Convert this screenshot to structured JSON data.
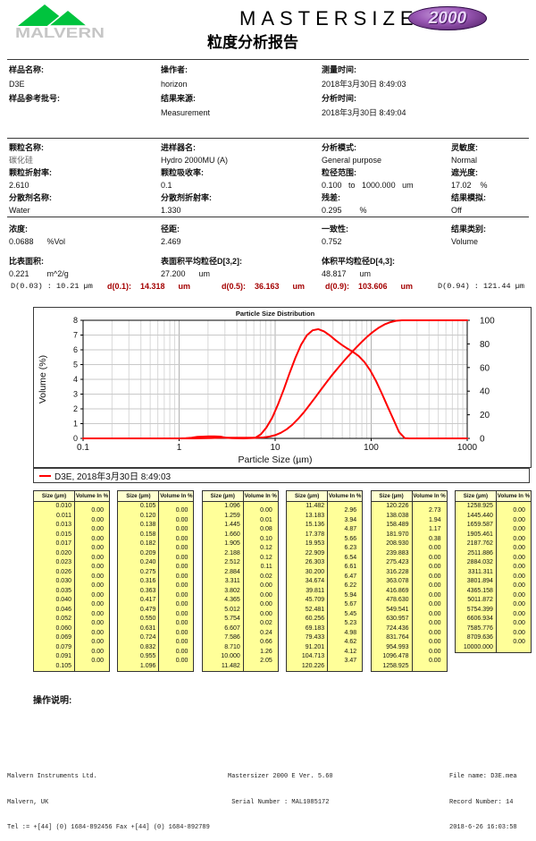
{
  "header": {
    "logo_text": "MALVERN",
    "title": "MASTERSIZER",
    "badge": "2000",
    "subtitle": "粒度分析报告"
  },
  "sample_section": {
    "columns": [
      {
        "fields": [
          {
            "label": "样品名称:",
            "value": "D3E"
          },
          {
            "label": "样品参考批号:",
            "value": ""
          }
        ]
      },
      {
        "fields": [
          {
            "label": "操作者:",
            "value": "horizon"
          },
          {
            "label": "结果来源:",
            "value": "Measurement"
          }
        ]
      },
      {
        "fields": [
          {
            "label": "测量时间:",
            "value": "2018年3月30日 8:49:03"
          },
          {
            "label": "分析时间:",
            "value": "2018年3月30日 8:49:04"
          }
        ]
      }
    ]
  },
  "particle_section": {
    "columns": [
      {
        "fields": [
          {
            "label": "颗粒名称:",
            "value": "碳化硅"
          },
          {
            "label": "颗粒折射率:",
            "value": "2.610"
          },
          {
            "label": "分散剂名称:",
            "value": "Water"
          }
        ]
      },
      {
        "fields": [
          {
            "label": "进样器名:",
            "value": "Hydro 2000MU (A)"
          },
          {
            "label": "颗粒吸收率:",
            "value": "0.1"
          },
          {
            "label": "分散剂折射率:",
            "value": "1.330"
          }
        ]
      },
      {
        "fields": [
          {
            "label": "分析模式:",
            "value": "General purpose"
          },
          {
            "label": "粒径范围:",
            "value": "0.100   to   1000.000   um"
          },
          {
            "label": "残差:",
            "value": "0.295        %"
          }
        ]
      },
      {
        "fields": [
          {
            "label": "灵敏度:",
            "value": "Normal"
          },
          {
            "label": "遮光度:",
            "value": "17.02    %"
          },
          {
            "label": "结果模拟:",
            "value": "Off"
          }
        ]
      }
    ]
  },
  "results_section": {
    "row1": [
      {
        "label": "浓度:",
        "value": "0.0688      %Vol"
      },
      {
        "label": "径距:",
        "value": "2.469"
      },
      {
        "label": "一致性:",
        "value": "0.752"
      },
      {
        "label": "结果类别:",
        "value": "Volume"
      }
    ],
    "row2": [
      {
        "label": "比表面积:",
        "value": "0.221        m^2/g"
      },
      {
        "label": "表面积平均粒径D[3,2]:",
        "value": "27.200      um"
      },
      {
        "label": "体积平均粒径D[4,3]:",
        "value": "48.817      um"
      }
    ]
  },
  "d_values": [
    {
      "text": "D(0.03) : 10.21 µm"
    },
    {
      "text": "d(0.1):    14.318      um"
    },
    {
      "text": "d(0.5):    36.163      um"
    },
    {
      "text": "d(0.9):    103.606      um"
    },
    {
      "text": "D(0.94) : 121.44 µm"
    }
  ],
  "chart_data": {
    "type": "line",
    "title": "Particle Size Distribution",
    "xlabel": "Particle Size (µm)",
    "ylabel": "Volume (%)",
    "x_scale": "log",
    "xlim": [
      0.1,
      1000
    ],
    "x_ticks": [
      "0.1",
      "1",
      "10",
      "100",
      "1000"
    ],
    "ylim_left": [
      0,
      8
    ],
    "left_ticks": [
      0,
      1,
      2,
      3,
      4,
      5,
      6,
      7,
      8
    ],
    "ylim_right": [
      0,
      100
    ],
    "right_ticks": [
      0,
      20,
      40,
      60,
      80,
      100
    ],
    "grid": true,
    "line_color": "#ff0000",
    "legend": "D3E, 2018年3月30日 8:49:03",
    "series": [
      {
        "name": "frequency",
        "axis": "left",
        "points": [
          [
            0.1,
            0
          ],
          [
            1.0,
            0
          ],
          [
            1.175,
            0.01
          ],
          [
            1.35,
            0.05
          ],
          [
            1.55,
            0.1
          ],
          [
            1.78,
            0.12
          ],
          [
            2.04,
            0.14
          ],
          [
            2.34,
            0.14
          ],
          [
            2.69,
            0.12
          ],
          [
            3.09,
            0.04
          ],
          [
            3.55,
            0.01
          ],
          [
            4.68,
            0
          ],
          [
            5.37,
            0.01
          ],
          [
            6.17,
            0.03
          ],
          [
            7.08,
            0.27
          ],
          [
            8.13,
            0.74
          ],
          [
            9.33,
            1.41
          ],
          [
            10.72,
            2.3
          ],
          [
            12.31,
            3.32
          ],
          [
            14.13,
            4.41
          ],
          [
            16.22,
            5.45
          ],
          [
            18.62,
            6.34
          ],
          [
            21.38,
            6.98
          ],
          [
            24.55,
            7.32
          ],
          [
            28.18,
            7.4
          ],
          [
            32.36,
            7.25
          ],
          [
            37.15,
            6.97
          ],
          [
            42.66,
            6.65
          ],
          [
            48.98,
            6.35
          ],
          [
            56.23,
            6.1
          ],
          [
            64.57,
            5.86
          ],
          [
            74.13,
            5.58
          ],
          [
            85.11,
            5.17
          ],
          [
            97.72,
            4.61
          ],
          [
            112.2,
            3.89
          ],
          [
            128.8,
            3.06
          ],
          [
            147.9,
            2.17
          ],
          [
            169.8,
            1.31
          ],
          [
            195.0,
            0.43
          ],
          [
            223.9,
            0.02
          ],
          [
            251.2,
            0
          ],
          [
            1000,
            0
          ]
        ]
      },
      {
        "name": "cumulative",
        "axis": "right",
        "points": [
          [
            0.1,
            0
          ],
          [
            1.259,
            0
          ],
          [
            1.445,
            0.01
          ],
          [
            1.66,
            0.09
          ],
          [
            1.905,
            0.19
          ],
          [
            2.188,
            0.31
          ],
          [
            2.512,
            0.43
          ],
          [
            2.884,
            0.54
          ],
          [
            3.311,
            0.56
          ],
          [
            5.754,
            0.56
          ],
          [
            6.607,
            0.58
          ],
          [
            7.586,
            0.82
          ],
          [
            8.71,
            1.48
          ],
          [
            10,
            2.74
          ],
          [
            11.482,
            4.79
          ],
          [
            13.183,
            7.75
          ],
          [
            15.136,
            11.69
          ],
          [
            17.378,
            16.56
          ],
          [
            19.953,
            22.22
          ],
          [
            22.909,
            28.45
          ],
          [
            26.303,
            34.99
          ],
          [
            30.2,
            41.6
          ],
          [
            34.674,
            48.07
          ],
          [
            39.811,
            54.29
          ],
          [
            45.709,
            60.23
          ],
          [
            52.481,
            65.9
          ],
          [
            60.256,
            71.35
          ],
          [
            69.183,
            76.58
          ],
          [
            79.433,
            81.56
          ],
          [
            91.201,
            86.18
          ],
          [
            104.713,
            90.3
          ],
          [
            120.226,
            93.77
          ],
          [
            138.038,
            96.5
          ],
          [
            158.489,
            98.44
          ],
          [
            181.97,
            99.61
          ],
          [
            208.93,
            99.99
          ],
          [
            239.883,
            100
          ],
          [
            1000,
            100
          ]
        ]
      }
    ]
  },
  "table_header": {
    "size": "Size (µm)",
    "volume": "Volume In %"
  },
  "tables": [
    {
      "sizes": [
        "0.010",
        "0.011",
        "0.013",
        "0.015",
        "0.017",
        "0.020",
        "0.023",
        "0.026",
        "0.030",
        "0.035",
        "0.040",
        "0.046",
        "0.052",
        "0.060",
        "0.069",
        "0.079",
        "0.091",
        "0.105"
      ],
      "volumes": [
        "0.00",
        "0.00",
        "0.00",
        "0.00",
        "0.00",
        "0.00",
        "0.00",
        "0.00",
        "0.00",
        "0.00",
        "0.00",
        "0.00",
        "0.00",
        "0.00",
        "0.00",
        "0.00",
        "0.00"
      ]
    },
    {
      "sizes": [
        "0.105",
        "0.120",
        "0.138",
        "0.158",
        "0.182",
        "0.209",
        "0.240",
        "0.275",
        "0.316",
        "0.363",
        "0.417",
        "0.479",
        "0.550",
        "0.631",
        "0.724",
        "0.832",
        "0.955",
        "1.096"
      ],
      "volumes": [
        "0.00",
        "0.00",
        "0.00",
        "0.00",
        "0.00",
        "0.00",
        "0.00",
        "0.00",
        "0.00",
        "0.00",
        "0.00",
        "0.00",
        "0.00",
        "0.00",
        "0.00",
        "0.00",
        "0.00"
      ]
    },
    {
      "sizes": [
        "1.096",
        "1.259",
        "1.445",
        "1.660",
        "1.905",
        "2.188",
        "2.512",
        "2.884",
        "3.311",
        "3.802",
        "4.365",
        "5.012",
        "5.754",
        "6.607",
        "7.586",
        "8.710",
        "10.000",
        "11.482"
      ],
      "volumes": [
        "0.00",
        "0.01",
        "0.08",
        "0.10",
        "0.12",
        "0.12",
        "0.11",
        "0.02",
        "0.00",
        "0.00",
        "0.00",
        "0.00",
        "0.02",
        "0.24",
        "0.66",
        "1.26",
        "2.05"
      ]
    },
    {
      "sizes": [
        "11.482",
        "13.183",
        "15.136",
        "17.378",
        "19.953",
        "22.909",
        "26.303",
        "30.200",
        "34.674",
        "39.811",
        "45.709",
        "52.481",
        "60.256",
        "69.183",
        "79.433",
        "91.201",
        "104.713",
        "120.226"
      ],
      "volumes": [
        "2.96",
        "3.94",
        "4.87",
        "5.66",
        "6.23",
        "6.54",
        "6.61",
        "6.47",
        "6.22",
        "5.94",
        "5.67",
        "5.45",
        "5.23",
        "4.98",
        "4.62",
        "4.12",
        "3.47"
      ]
    },
    {
      "sizes": [
        "120.226",
        "138.038",
        "158.489",
        "181.970",
        "208.930",
        "239.883",
        "275.423",
        "316.228",
        "363.078",
        "416.869",
        "478.630",
        "549.541",
        "630.957",
        "724.436",
        "831.764",
        "954.993",
        "1096.478",
        "1258.925"
      ],
      "volumes": [
        "2.73",
        "1.94",
        "1.17",
        "0.38",
        "0.00",
        "0.00",
        "0.00",
        "0.00",
        "0.00",
        "0.00",
        "0.00",
        "0.00",
        "0.00",
        "0.00",
        "0.00",
        "0.00",
        "0.00"
      ]
    },
    {
      "sizes": [
        "1258.925",
        "1445.440",
        "1659.587",
        "1905.461",
        "2187.762",
        "2511.886",
        "2884.032",
        "3311.311",
        "3801.894",
        "4365.158",
        "5011.872",
        "5754.399",
        "6606.934",
        "7585.776",
        "8709.636",
        "10000.000"
      ],
      "volumes": [
        "0.00",
        "0.00",
        "0.00",
        "0.00",
        "0.00",
        "0.00",
        "0.00",
        "0.00",
        "0.00",
        "0.00",
        "0.00",
        "0.00",
        "0.00",
        "0.00",
        "0.00"
      ]
    }
  ],
  "operator_note_label": "操作说明:",
  "footer": {
    "left": [
      "Malvern Instruments Ltd.",
      "Malvern, UK",
      "Tel := +[44] (0) 1684-892456 Fax +[44] (0) 1684-892789"
    ],
    "center": [
      "Mastersizer 2000 E Ver. 5.60",
      " Serial Number : MAL1085172"
    ],
    "right": [
      "File name: D3E.mea",
      "Record Number: 14",
      "2018-6-26 16:03:58"
    ]
  }
}
